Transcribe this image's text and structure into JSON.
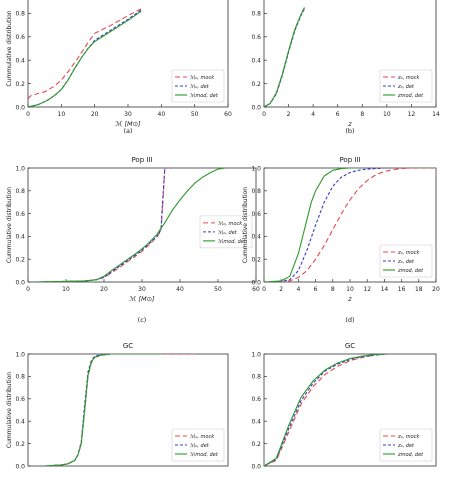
{
  "chart_data": [
    {
      "type": "line",
      "caption": "(a)",
      "title": "",
      "xlabel": "ℳ [M⊙]",
      "ylabel": "Cummulative distribution",
      "xlim": [
        0,
        60
      ],
      "ylim": [
        0,
        1
      ],
      "xticks": [
        0,
        10,
        20,
        30,
        40,
        50,
        60
      ],
      "yticks": [
        0.0,
        0.2,
        0.4,
        0.6,
        0.8
      ],
      "legend_position": "lower-right",
      "series": [
        {
          "name": "ℳ₀, mock",
          "color": "#e8474b",
          "dash": "5,3",
          "x": [
            0,
            1,
            5,
            8,
            10,
            12,
            15,
            18,
            20,
            25,
            30,
            34
          ],
          "y": [
            0.07,
            0.1,
            0.13,
            0.18,
            0.23,
            0.3,
            0.42,
            0.55,
            0.63,
            0.7,
            0.78,
            0.84
          ]
        },
        {
          "name": "ℳ₀, det",
          "color": "#3a3ac8",
          "dash": "3,2",
          "x": [
            0,
            3,
            6,
            8,
            10,
            12,
            14,
            16,
            18,
            20,
            25,
            30,
            34
          ],
          "y": [
            0,
            0.02,
            0.06,
            0.1,
            0.15,
            0.23,
            0.33,
            0.42,
            0.5,
            0.57,
            0.66,
            0.75,
            0.83
          ]
        },
        {
          "name": "ℳmod, det",
          "color": "#2b9a2b",
          "dash": "",
          "x": [
            0,
            3,
            6,
            8,
            10,
            12,
            14,
            16,
            18,
            20,
            25,
            30,
            34
          ],
          "y": [
            0,
            0.02,
            0.06,
            0.1,
            0.15,
            0.23,
            0.33,
            0.42,
            0.5,
            0.56,
            0.65,
            0.74,
            0.82
          ]
        }
      ]
    },
    {
      "type": "line",
      "caption": "(b)",
      "title": "",
      "xlabel": "z",
      "ylabel": "",
      "xlim": [
        0,
        14
      ],
      "ylim": [
        0,
        1
      ],
      "xticks": [
        0,
        2,
        4,
        6,
        8,
        10,
        12,
        14
      ],
      "yticks": [
        0.0,
        0.2,
        0.4,
        0.6,
        0.8
      ],
      "legend_position": "lower-right",
      "series": [
        {
          "name": "z₀, mock",
          "color": "#e8474b",
          "dash": "5,3",
          "x": [
            0,
            0.5,
            1,
            1.5,
            2,
            2.5,
            3,
            3.3
          ],
          "y": [
            0,
            0.03,
            0.12,
            0.28,
            0.48,
            0.66,
            0.79,
            0.85
          ]
        },
        {
          "name": "z₀, det",
          "color": "#3a3ac8",
          "dash": "3,2",
          "x": [
            0,
            0.5,
            1,
            1.5,
            2,
            2.5,
            3,
            3.3
          ],
          "y": [
            0,
            0.03,
            0.11,
            0.27,
            0.47,
            0.65,
            0.78,
            0.84
          ]
        },
        {
          "name": "zmod, det",
          "color": "#2b9a2b",
          "dash": "",
          "x": [
            0,
            0.5,
            1,
            1.5,
            2,
            2.5,
            3,
            3.3
          ],
          "y": [
            0,
            0.03,
            0.12,
            0.28,
            0.48,
            0.66,
            0.79,
            0.85
          ]
        }
      ]
    },
    {
      "type": "line",
      "caption": "(c)",
      "title": "Pop III",
      "xlabel": "ℳ [M⊙]",
      "ylabel": "Cummulative distribution",
      "xlim": [
        0,
        60
      ],
      "ylim": [
        0,
        1
      ],
      "xticks": [
        0,
        10,
        20,
        30,
        40,
        50,
        60
      ],
      "yticks": [
        0.0,
        0.2,
        0.4,
        0.6,
        0.8,
        1.0
      ],
      "legend_position": "center-right",
      "series": [
        {
          "name": "ℳ₀, mock",
          "color": "#e8474b",
          "dash": "5,3",
          "x": [
            2,
            10,
            15,
            18,
            20,
            22,
            25,
            28,
            30,
            32,
            34,
            35,
            35.5,
            36,
            38
          ],
          "y": [
            0,
            0.005,
            0.01,
            0.02,
            0.04,
            0.08,
            0.15,
            0.22,
            0.27,
            0.33,
            0.4,
            0.45,
            0.7,
            1.0,
            1.0
          ]
        },
        {
          "name": "ℳ₀, det",
          "color": "#3a3ac8",
          "dash": "3,2",
          "x": [
            2,
            10,
            15,
            18,
            20,
            22,
            25,
            28,
            30,
            32,
            34,
            35,
            35.5,
            36,
            38
          ],
          "y": [
            0,
            0.005,
            0.01,
            0.02,
            0.04,
            0.09,
            0.16,
            0.23,
            0.28,
            0.34,
            0.4,
            0.46,
            0.75,
            1.0,
            1.0
          ]
        },
        {
          "name": "ℳmod, det",
          "color": "#2b9a2b",
          "dash": "",
          "x": [
            2,
            10,
            15,
            18,
            20,
            22,
            25,
            28,
            30,
            32,
            34,
            36,
            38,
            40,
            42,
            44,
            46,
            48,
            50,
            52
          ],
          "y": [
            0,
            0.005,
            0.01,
            0.02,
            0.05,
            0.1,
            0.17,
            0.24,
            0.29,
            0.35,
            0.42,
            0.52,
            0.63,
            0.72,
            0.8,
            0.87,
            0.92,
            0.96,
            0.99,
            1.0
          ]
        }
      ]
    },
    {
      "type": "line",
      "caption": "(d)",
      "title": "Pop III",
      "xlabel": "z",
      "ylabel": "Cummulative distribution",
      "xlim": [
        0,
        20
      ],
      "ylim": [
        0,
        1
      ],
      "xticks": [
        0,
        2,
        4,
        6,
        8,
        10,
        12,
        14,
        16,
        18,
        20
      ],
      "yticks": [
        0.0,
        0.2,
        0.4,
        0.6,
        0.8,
        1.0
      ],
      "legend_position": "lower-right",
      "series": [
        {
          "name": "z₀, mock",
          "color": "#e8474b",
          "dash": "5,3",
          "x": [
            0,
            2,
            3,
            4,
            5,
            6,
            7,
            8,
            9,
            10,
            11,
            12,
            13,
            14,
            15,
            16,
            17,
            18,
            19,
            20
          ],
          "y": [
            0,
            0,
            0.01,
            0.04,
            0.1,
            0.2,
            0.32,
            0.46,
            0.6,
            0.72,
            0.82,
            0.89,
            0.94,
            0.97,
            0.985,
            0.995,
            1.0,
            1.0,
            1.0,
            1.0
          ]
        },
        {
          "name": "z₀, det",
          "color": "#3a3ac8",
          "dash": "3,2",
          "x": [
            0,
            2,
            3,
            4,
            5,
            6,
            7,
            8,
            9,
            10,
            11,
            12,
            13,
            14,
            15
          ],
          "y": [
            0,
            0.005,
            0.02,
            0.1,
            0.28,
            0.5,
            0.7,
            0.84,
            0.92,
            0.96,
            0.98,
            0.99,
            0.995,
            1.0,
            1.0
          ]
        },
        {
          "name": "zmod, det",
          "color": "#2b9a2b",
          "dash": "",
          "x": [
            0,
            2,
            3,
            4,
            5,
            5.5,
            6,
            7,
            8,
            9,
            10,
            11
          ],
          "y": [
            0,
            0.01,
            0.05,
            0.25,
            0.55,
            0.7,
            0.8,
            0.93,
            0.98,
            0.995,
            1.0,
            1.0
          ]
        }
      ]
    },
    {
      "type": "line",
      "caption": "",
      "title": "GC",
      "xlabel": "",
      "ylabel": "Cummulative distribution",
      "xlim": [
        0,
        60
      ],
      "ylim": [
        0,
        1
      ],
      "xticks": [],
      "yticks": [
        0.0,
        0.2,
        0.4,
        0.6,
        0.8,
        1.0
      ],
      "legend_position": "lower-right",
      "series": [
        {
          "name": "ℳ₀, mock",
          "color": "#e8474b",
          "dash": "5,3",
          "x": [
            5,
            10,
            12,
            14,
            15,
            16,
            17,
            18,
            19,
            20,
            22,
            25,
            30,
            40,
            50
          ],
          "y": [
            0,
            0.01,
            0.02,
            0.05,
            0.1,
            0.2,
            0.5,
            0.8,
            0.92,
            0.97,
            0.99,
            1.0,
            1.0,
            1.0,
            1.0
          ]
        },
        {
          "name": "ℳ₀, det",
          "color": "#3a3ac8",
          "dash": "3,2",
          "x": [
            5,
            10,
            12,
            14,
            15,
            16,
            17,
            18,
            19,
            20,
            22,
            25,
            30
          ],
          "y": [
            0,
            0.01,
            0.02,
            0.05,
            0.1,
            0.22,
            0.55,
            0.84,
            0.94,
            0.98,
            0.995,
            1.0,
            1.0
          ]
        },
        {
          "name": "ℳmod, det",
          "color": "#2b9a2b",
          "dash": "",
          "x": [
            5,
            10,
            12,
            14,
            15,
            16,
            17,
            18,
            19,
            20,
            22,
            25,
            30,
            40
          ],
          "y": [
            0,
            0.01,
            0.02,
            0.05,
            0.1,
            0.2,
            0.5,
            0.81,
            0.93,
            0.97,
            0.99,
            1.0,
            1.0,
            1.0
          ]
        }
      ]
    },
    {
      "type": "line",
      "caption": "",
      "title": "GC",
      "xlabel": "",
      "ylabel": "",
      "xlim": [
        0,
        14
      ],
      "ylim": [
        0,
        1
      ],
      "xticks": [],
      "yticks": [
        0.0,
        0.2,
        0.4,
        0.6,
        0.8,
        1.0
      ],
      "legend_position": "lower-right",
      "series": [
        {
          "name": "z₀, mock",
          "color": "#e8474b",
          "dash": "5,3",
          "x": [
            0,
            1,
            2,
            3,
            4,
            5,
            6,
            7,
            8,
            9,
            10
          ],
          "y": [
            0,
            0.05,
            0.3,
            0.55,
            0.71,
            0.82,
            0.89,
            0.94,
            0.97,
            0.99,
            1.0
          ]
        },
        {
          "name": "z₀, det",
          "color": "#3a3ac8",
          "dash": "3,2",
          "x": [
            0,
            1,
            2,
            3,
            4,
            5,
            6,
            7,
            8,
            9,
            10
          ],
          "y": [
            0,
            0.06,
            0.33,
            0.58,
            0.74,
            0.85,
            0.91,
            0.95,
            0.975,
            0.99,
            1.0
          ]
        },
        {
          "name": "zmod, det",
          "color": "#2b9a2b",
          "dash": "",
          "x": [
            0,
            1,
            2,
            3,
            4,
            5,
            6,
            7,
            8,
            9,
            10
          ],
          "y": [
            0,
            0.07,
            0.36,
            0.61,
            0.76,
            0.86,
            0.92,
            0.96,
            0.98,
            0.995,
            1.0
          ]
        }
      ]
    }
  ]
}
